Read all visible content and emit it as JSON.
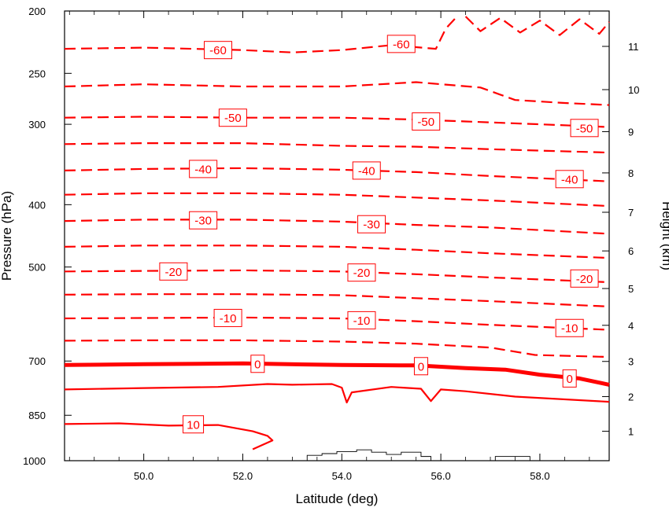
{
  "chart_data": {
    "type": "contour",
    "xlabel": "Latitude (deg)",
    "ylabel_left": "Pressure (hPa)",
    "ylabel_right": "Height (km)",
    "xlim": [
      48.4,
      59.4
    ],
    "x_ticks": [
      {
        "value": 50,
        "label": "50.0"
      },
      {
        "value": 52,
        "label": "52.0"
      },
      {
        "value": 54,
        "label": "54.0"
      },
      {
        "value": 56,
        "label": "56.0"
      },
      {
        "value": 58,
        "label": "58.0"
      }
    ],
    "ylim_pressure": [
      1000,
      200
    ],
    "y_scale": "log",
    "y_left_ticks": [
      {
        "value": 200,
        "label": "200"
      },
      {
        "value": 250,
        "label": "250"
      },
      {
        "value": 300,
        "label": "300"
      },
      {
        "value": 400,
        "label": "400"
      },
      {
        "value": 500,
        "label": "500"
      },
      {
        "value": 700,
        "label": "700"
      },
      {
        "value": 850,
        "label": "850"
      },
      {
        "value": 1000,
        "label": "1000"
      }
    ],
    "y_right_ticks": [
      {
        "km": 1,
        "pressure": 900,
        "label": "1"
      },
      {
        "km": 2,
        "pressure": 795,
        "label": "2"
      },
      {
        "km": 3,
        "pressure": 701,
        "label": "3"
      },
      {
        "km": 4,
        "pressure": 616,
        "label": "4"
      },
      {
        "km": 5,
        "pressure": 540,
        "label": "5"
      },
      {
        "km": 6,
        "pressure": 472,
        "label": "6"
      },
      {
        "km": 7,
        "pressure": 411,
        "label": "7"
      },
      {
        "km": 8,
        "pressure": 357,
        "label": "8"
      },
      {
        "km": 9,
        "pressure": 308,
        "label": "9"
      },
      {
        "km": 10,
        "pressure": 265,
        "label": "10"
      },
      {
        "km": 11,
        "pressure": 227,
        "label": "11"
      }
    ],
    "contours": [
      {
        "level": -60,
        "dashed": true,
        "points": [
          [
            48.4,
            229
          ],
          [
            50,
            228
          ],
          [
            51,
            229
          ],
          [
            52,
            230
          ],
          [
            53,
            232
          ],
          [
            54,
            230
          ],
          [
            55,
            226
          ],
          [
            55.9,
            229
          ],
          [
            56.1,
            213
          ],
          [
            56.3,
            205
          ]
        ],
        "labels": [
          {
            "lat": 51.5,
            "p": 230,
            "text": "-60"
          },
          {
            "lat": 55.2,
            "p": 225,
            "text": "-60"
          }
        ]
      },
      {
        "level": -60,
        "dashed": true,
        "points": [
          [
            56.5,
            204
          ],
          [
            56.8,
            215
          ],
          [
            57.2,
            205
          ],
          [
            57.6,
            216
          ],
          [
            58,
            207
          ],
          [
            58.4,
            218
          ],
          [
            58.8,
            206
          ],
          [
            59.2,
            217
          ],
          [
            59.4,
            208
          ]
        ],
        "labels": []
      },
      {
        "level": -55,
        "dashed": true,
        "points": [
          [
            48.4,
            262
          ],
          [
            50,
            260
          ],
          [
            52,
            262
          ],
          [
            54,
            262
          ],
          [
            55.5,
            258
          ],
          [
            56.8,
            263
          ],
          [
            57.5,
            275
          ],
          [
            58.5,
            278
          ],
          [
            59.4,
            280
          ]
        ],
        "labels": []
      },
      {
        "level": -50,
        "dashed": true,
        "points": [
          [
            48.4,
            293
          ],
          [
            50,
            292
          ],
          [
            52,
            293
          ],
          [
            54,
            293
          ],
          [
            55.5,
            295
          ],
          [
            56.5,
            297
          ],
          [
            58,
            300
          ],
          [
            59.4,
            303
          ]
        ],
        "labels": [
          {
            "lat": 51.8,
            "p": 293,
            "text": "-50"
          },
          {
            "lat": 55.7,
            "p": 297,
            "text": "-50"
          },
          {
            "lat": 58.9,
            "p": 304,
            "text": "-50"
          }
        ]
      },
      {
        "level": -45,
        "dashed": true,
        "points": [
          [
            48.4,
            322
          ],
          [
            50,
            321
          ],
          [
            52,
            321
          ],
          [
            54,
            324
          ],
          [
            55.5,
            325
          ],
          [
            57,
            328
          ],
          [
            59.4,
            332
          ]
        ],
        "labels": []
      },
      {
        "level": -40,
        "dashed": true,
        "points": [
          [
            48.4,
            354
          ],
          [
            50,
            352
          ],
          [
            52,
            351
          ],
          [
            54,
            353
          ],
          [
            55.5,
            356
          ],
          [
            57,
            361
          ],
          [
            59.4,
            368
          ]
        ],
        "labels": [
          {
            "lat": 51.2,
            "p": 352,
            "text": "-40"
          },
          {
            "lat": 54.5,
            "p": 354,
            "text": "-40"
          },
          {
            "lat": 58.6,
            "p": 365,
            "text": "-40"
          }
        ]
      },
      {
        "level": -35,
        "dashed": true,
        "points": [
          [
            48.4,
            386
          ],
          [
            50,
            384
          ],
          [
            52,
            384
          ],
          [
            54,
            386
          ],
          [
            55.5,
            390
          ],
          [
            57,
            394
          ],
          [
            59.4,
            402
          ]
        ],
        "labels": []
      },
      {
        "level": -30,
        "dashed": true,
        "points": [
          [
            48.4,
            424
          ],
          [
            50,
            422
          ],
          [
            52,
            422
          ],
          [
            54,
            425
          ],
          [
            55.5,
            430
          ],
          [
            57,
            434
          ],
          [
            59.4,
            444
          ]
        ],
        "labels": [
          {
            "lat": 51.2,
            "p": 423,
            "text": "-30"
          },
          {
            "lat": 54.6,
            "p": 429,
            "text": "-30"
          }
        ]
      },
      {
        "level": -25,
        "dashed": true,
        "points": [
          [
            48.4,
            465
          ],
          [
            50,
            463
          ],
          [
            52,
            463
          ],
          [
            54,
            465
          ],
          [
            55.5,
            470
          ],
          [
            57,
            476
          ],
          [
            59.4,
            484
          ]
        ],
        "labels": []
      },
      {
        "level": -20,
        "dashed": true,
        "points": [
          [
            48.4,
            508
          ],
          [
            50,
            507
          ],
          [
            52,
            506
          ],
          [
            54,
            508
          ],
          [
            55.5,
            513
          ],
          [
            57,
            519
          ],
          [
            59.4,
            528
          ]
        ],
        "labels": [
          {
            "lat": 50.6,
            "p": 508,
            "text": "-20"
          },
          {
            "lat": 54.4,
            "p": 510,
            "text": "-20"
          },
          {
            "lat": 58.9,
            "p": 521,
            "text": "-20"
          }
        ]
      },
      {
        "level": -15,
        "dashed": true,
        "points": [
          [
            48.4,
            552
          ],
          [
            50,
            551
          ],
          [
            52,
            551
          ],
          [
            54,
            553
          ],
          [
            55.5,
            559
          ],
          [
            57,
            565
          ],
          [
            59.4,
            576
          ]
        ],
        "labels": []
      },
      {
        "level": -10,
        "dashed": true,
        "points": [
          [
            48.4,
            601
          ],
          [
            50,
            600
          ],
          [
            52,
            599
          ],
          [
            54,
            601
          ],
          [
            55.5,
            607
          ],
          [
            57,
            615
          ],
          [
            59.4,
            626
          ]
        ],
        "labels": [
          {
            "lat": 51.7,
            "p": 600,
            "text": "-10"
          },
          {
            "lat": 54.4,
            "p": 605,
            "text": "-10"
          },
          {
            "lat": 58.6,
            "p": 622,
            "text": "-10"
          }
        ]
      },
      {
        "level": -5,
        "dashed": true,
        "points": [
          [
            48.4,
            651
          ],
          [
            50,
            650
          ],
          [
            52,
            650
          ],
          [
            54,
            653
          ],
          [
            55.5,
            658
          ],
          [
            57,
            667
          ],
          [
            57.9,
            685
          ],
          [
            59.4,
            690
          ]
        ],
        "labels": []
      },
      {
        "level": 0,
        "dashed": false,
        "thick": true,
        "points": [
          [
            48.4,
            710
          ],
          [
            50,
            708
          ],
          [
            52,
            706
          ],
          [
            54,
            710
          ],
          [
            55.5,
            711
          ],
          [
            56.5,
            718
          ],
          [
            57.3,
            722
          ],
          [
            58,
            735
          ],
          [
            58.8,
            745
          ],
          [
            59.4,
            762
          ]
        ],
        "labels": [
          {
            "lat": 52.3,
            "p": 707,
            "text": "0"
          },
          {
            "lat": 55.6,
            "p": 713,
            "text": "0"
          },
          {
            "lat": 58.6,
            "p": 745,
            "text": "0"
          }
        ]
      },
      {
        "level": 5,
        "dashed": false,
        "points": [
          [
            48.4,
            775
          ],
          [
            50,
            771
          ],
          [
            51.5,
            768
          ],
          [
            52.5,
            760
          ],
          [
            53,
            762
          ],
          [
            53.8,
            760
          ],
          [
            54,
            770
          ],
          [
            54.1,
            812
          ],
          [
            54.2,
            783
          ],
          [
            55,
            768
          ],
          [
            55.6,
            773
          ],
          [
            55.8,
            808
          ],
          [
            56,
            775
          ],
          [
            56.5,
            780
          ],
          [
            57.5,
            795
          ],
          [
            59.4,
            810
          ]
        ],
        "labels": []
      },
      {
        "level": 10,
        "dashed": false,
        "points": [
          [
            48.4,
            877
          ],
          [
            49.5,
            875
          ],
          [
            50.5,
            882
          ],
          [
            51.5,
            880
          ],
          [
            52.2,
            900
          ],
          [
            52.5,
            915
          ],
          [
            52.6,
            930
          ],
          [
            52.4,
            945
          ],
          [
            52.2,
            960
          ]
        ],
        "labels": [
          {
            "lat": 51.0,
            "p": 878,
            "text": "10"
          }
        ]
      }
    ],
    "annotations": {
      "terrain_profile": [
        [
          53.1,
          1000
        ],
        [
          53.3,
          981
        ],
        [
          53.6,
          975
        ],
        [
          53.9,
          968
        ],
        [
          54.3,
          962
        ],
        [
          54.6,
          970
        ],
        [
          54.9,
          978
        ],
        [
          55.2,
          970
        ],
        [
          55.6,
          985
        ],
        [
          55.8,
          1000
        ]
      ],
      "terrain_box": [
        [
          57.1,
          1000
        ],
        [
          57.8,
          1000
        ]
      ]
    }
  }
}
